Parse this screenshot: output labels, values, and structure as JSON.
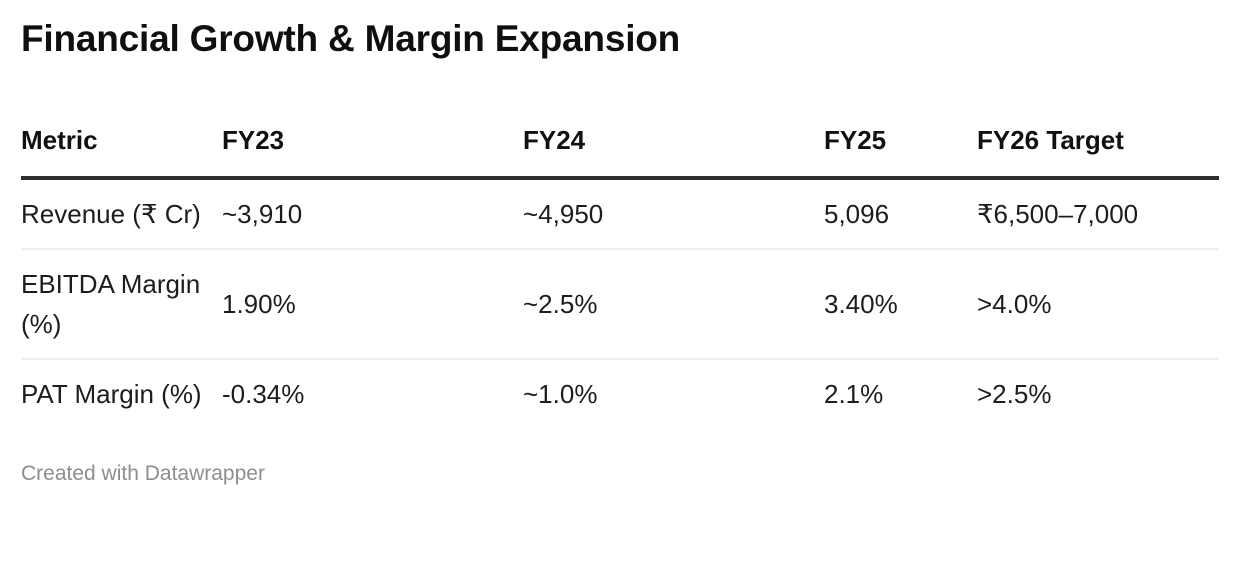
{
  "chart_data": {
    "type": "table",
    "title": "Financial Growth & Margin Expansion",
    "columns": [
      "Metric",
      "FY23",
      "FY24",
      "FY25",
      "FY26 Target"
    ],
    "rows": [
      [
        "Revenue (₹ Cr)",
        "~3,910",
        "~4,950",
        "5,096",
        "₹6,500–7,000"
      ],
      [
        "EBITDA Margin (%)",
        "1.90%",
        "~2.5%",
        "3.40%",
        ">4.0%"
      ],
      [
        "PAT Margin (%)",
        "-0.34%",
        "~1.0%",
        "2.1%",
        ">2.5%"
      ]
    ],
    "layout_hints": {
      "column_alignments": [
        "left",
        "left",
        "left",
        "right",
        "left"
      ],
      "header_rule": "thick-dark",
      "row_rule": "thin-light"
    }
  },
  "footer": {
    "credit": "Created with Datawrapper"
  },
  "colors": {
    "background": "#ffffff",
    "title_text": "#0f0f0f",
    "body_text": "#1d1d1d",
    "header_border": "#2e2e2e",
    "row_border": "#ededed",
    "credit_text": "#8e8e8e"
  }
}
